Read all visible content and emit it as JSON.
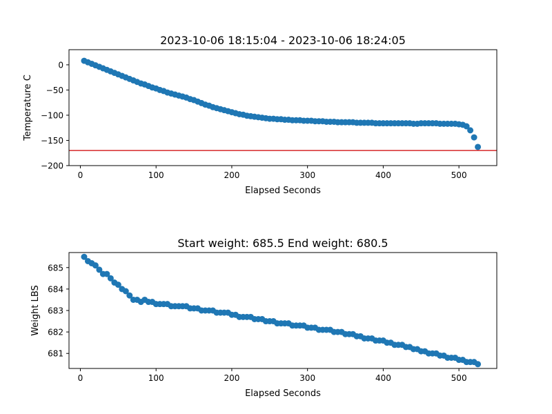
{
  "colors": {
    "marker": "#1f77b4",
    "reference_line": "#d62728",
    "axes": "#000000",
    "background": "#ffffff"
  },
  "chart_data": [
    {
      "type": "scatter",
      "title": "2023-10-06 18:15:04 - 2023-10-06 18:24:05",
      "xlabel": "Elapsed Seconds",
      "ylabel": "Temperature C",
      "xlim": [
        -15,
        550
      ],
      "ylim": [
        -200,
        30
      ],
      "xticks": [
        0,
        100,
        200,
        300,
        400,
        500
      ],
      "yticks": [
        -200,
        -150,
        -100,
        -50,
        0
      ],
      "grid": false,
      "reference_line": {
        "orientation": "horizontal",
        "y": -170,
        "color": "#d62728"
      },
      "series": [
        {
          "x": [
            5,
            10,
            15,
            20,
            25,
            30,
            35,
            40,
            45,
            50,
            55,
            60,
            65,
            70,
            75,
            80,
            85,
            90,
            95,
            100,
            105,
            110,
            115,
            120,
            125,
            130,
            135,
            140,
            145,
            150,
            155,
            160,
            165,
            170,
            175,
            180,
            185,
            190,
            195,
            200,
            205,
            210,
            215,
            220,
            225,
            230,
            235,
            240,
            245,
            250,
            255,
            260,
            265,
            270,
            275,
            280,
            285,
            290,
            295,
            300,
            305,
            310,
            315,
            320,
            325,
            330,
            335,
            340,
            345,
            350,
            355,
            360,
            365,
            370,
            375,
            380,
            385,
            390,
            395,
            400,
            405,
            410,
            415,
            420,
            425,
            430,
            435,
            440,
            445,
            450,
            455,
            460,
            465,
            470,
            475,
            480,
            485,
            490,
            495,
            500,
            505,
            510,
            515,
            520,
            525
          ],
          "y": [
            8,
            5,
            2,
            -1,
            -4,
            -7,
            -10,
            -13,
            -16,
            -19,
            -22,
            -25,
            -28,
            -31,
            -34,
            -37,
            -39,
            -42,
            -45,
            -47,
            -50,
            -52,
            -55,
            -57,
            -59,
            -61,
            -63,
            -65,
            -68,
            -70,
            -73,
            -76,
            -79,
            -81,
            -84,
            -86,
            -88,
            -90,
            -92,
            -94,
            -96,
            -98,
            -99,
            -101,
            -102,
            -103,
            -104,
            -105,
            -106,
            -107,
            -107,
            -108,
            -108,
            -109,
            -109,
            -110,
            -110,
            -110,
            -111,
            -111,
            -111,
            -112,
            -112,
            -112,
            -113,
            -113,
            -113,
            -114,
            -114,
            -114,
            -114,
            -114,
            -115,
            -115,
            -115,
            -115,
            -115,
            -116,
            -116,
            -116,
            -116,
            -116,
            -116,
            -116,
            -116,
            -116,
            -116,
            -117,
            -117,
            -116,
            -116,
            -116,
            -116,
            -116,
            -117,
            -117,
            -117,
            -117,
            -117,
            -118,
            -119,
            -122,
            -130,
            -144,
            -163
          ]
        }
      ]
    },
    {
      "type": "scatter",
      "title": "Start weight: 685.5 End weight: 680.5",
      "xlabel": "Elapsed Seconds",
      "ylabel": "Weight LBS",
      "xlim": [
        -15,
        550
      ],
      "ylim": [
        680.3,
        685.7
      ],
      "xticks": [
        0,
        100,
        200,
        300,
        400,
        500
      ],
      "yticks": [
        681,
        682,
        683,
        684,
        685
      ],
      "grid": false,
      "series": [
        {
          "x": [
            5,
            10,
            15,
            20,
            25,
            30,
            35,
            40,
            45,
            50,
            55,
            60,
            65,
            70,
            75,
            80,
            85,
            90,
            95,
            100,
            105,
            110,
            115,
            120,
            125,
            130,
            135,
            140,
            145,
            150,
            155,
            160,
            165,
            170,
            175,
            180,
            185,
            190,
            195,
            200,
            205,
            210,
            215,
            220,
            225,
            230,
            235,
            240,
            245,
            250,
            255,
            260,
            265,
            270,
            275,
            280,
            285,
            290,
            295,
            300,
            305,
            310,
            315,
            320,
            325,
            330,
            335,
            340,
            345,
            350,
            355,
            360,
            365,
            370,
            375,
            380,
            385,
            390,
            395,
            400,
            405,
            410,
            415,
            420,
            425,
            430,
            435,
            440,
            445,
            450,
            455,
            460,
            465,
            470,
            475,
            480,
            485,
            490,
            495,
            500,
            505,
            510,
            515,
            520,
            525
          ],
          "y": [
            685.5,
            685.3,
            685.2,
            685.1,
            684.9,
            684.7,
            684.7,
            684.5,
            684.3,
            684.2,
            684.0,
            683.9,
            683.7,
            683.5,
            683.5,
            683.4,
            683.5,
            683.4,
            683.4,
            683.3,
            683.3,
            683.3,
            683.3,
            683.2,
            683.2,
            683.2,
            683.2,
            683.2,
            683.1,
            683.1,
            683.1,
            683.0,
            683.0,
            683.0,
            683.0,
            682.9,
            682.9,
            682.9,
            682.9,
            682.8,
            682.8,
            682.7,
            682.7,
            682.7,
            682.7,
            682.6,
            682.6,
            682.6,
            682.5,
            682.5,
            682.5,
            682.4,
            682.4,
            682.4,
            682.4,
            682.3,
            682.3,
            682.3,
            682.3,
            682.2,
            682.2,
            682.2,
            682.1,
            682.1,
            682.1,
            682.1,
            682.0,
            682.0,
            682.0,
            681.9,
            681.9,
            681.9,
            681.8,
            681.8,
            681.7,
            681.7,
            681.7,
            681.6,
            681.6,
            681.6,
            681.5,
            681.5,
            681.4,
            681.4,
            681.4,
            681.3,
            681.3,
            681.2,
            681.2,
            681.1,
            681.1,
            681.0,
            681.0,
            681.0,
            680.9,
            680.9,
            680.8,
            680.8,
            680.8,
            680.7,
            680.7,
            680.6,
            680.6,
            680.6,
            680.5
          ]
        }
      ]
    }
  ]
}
